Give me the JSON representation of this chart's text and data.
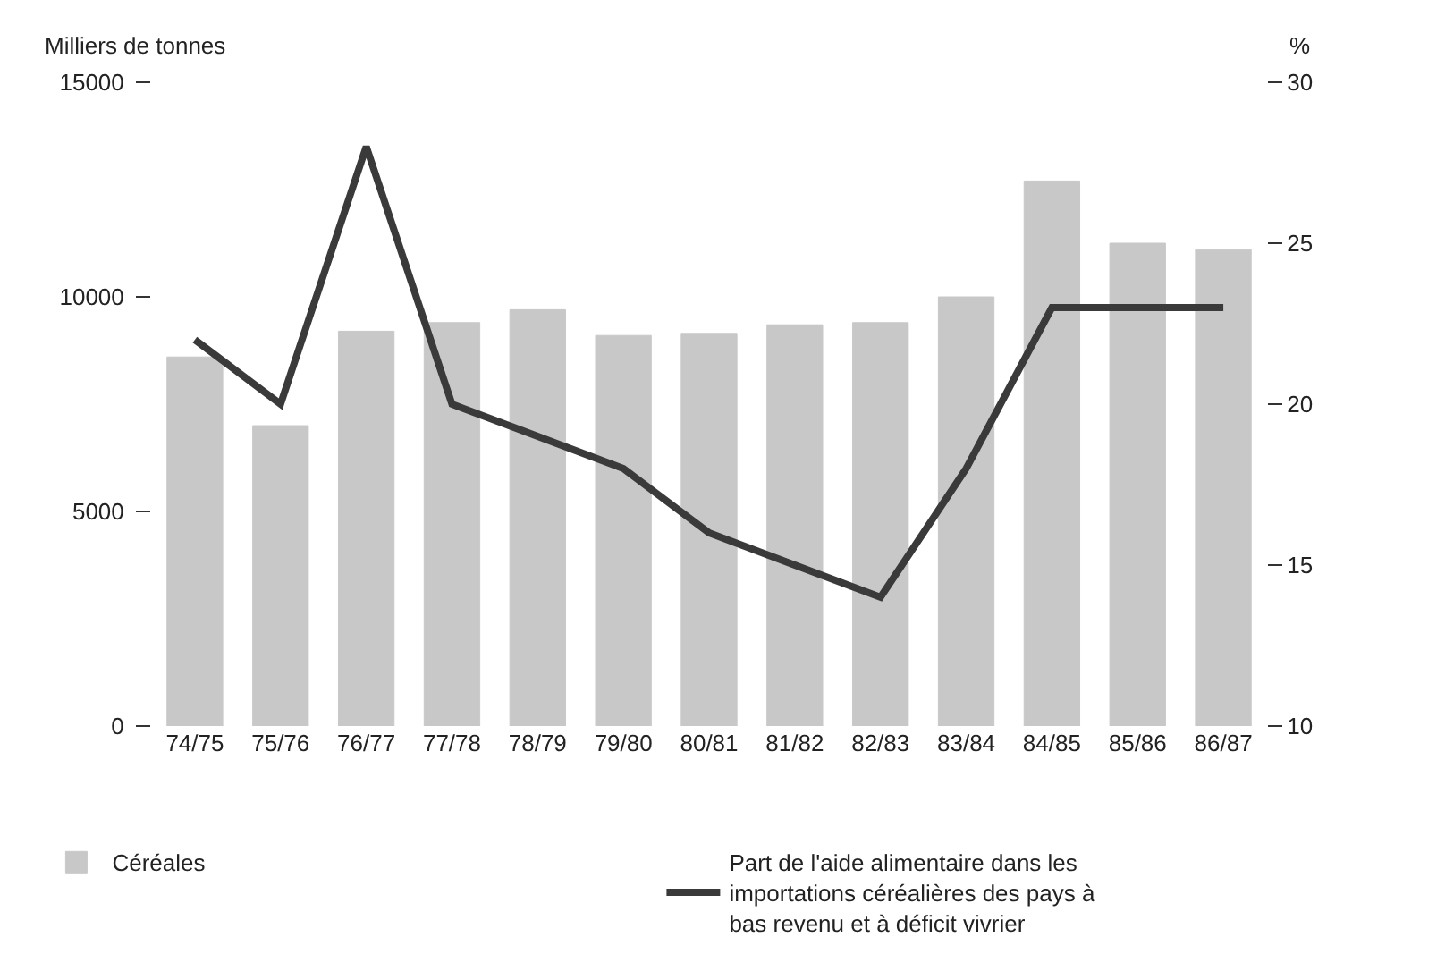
{
  "chart_data": {
    "type": "bar",
    "ylabel": "Milliers de tonnes",
    "y2label": "%",
    "categories": [
      "74/75",
      "75/76",
      "76/77",
      "77/78",
      "78/79",
      "79/80",
      "80/81",
      "81/82",
      "82/83",
      "83/84",
      "84/85",
      "85/86",
      "86/87"
    ],
    "series": [
      {
        "name": "Céréales",
        "color": "#c8c8c8",
        "values": [
          8600,
          7000,
          9200,
          9400,
          9700,
          9100,
          9150,
          9350,
          9400,
          10000,
          12700,
          11250,
          11100
        ]
      },
      {
        "name": "Part de l'aide alimentaire dans les importations céréalières des pays à bas revenu et à déficit vivrier",
        "type": "line",
        "axis": "y2",
        "color": "#3a3a3a",
        "values": [
          22,
          20,
          28,
          20,
          19,
          18,
          16,
          15,
          14,
          18,
          23,
          23,
          23
        ]
      }
    ],
    "ylim": [
      0,
      15000
    ],
    "yticks": [
      0,
      5000,
      10000,
      15000
    ],
    "y2lim": [
      10,
      30
    ],
    "y2ticks": [
      10,
      15,
      20,
      25,
      30
    ],
    "grid": false,
    "legend": "bottom",
    "marker": "none",
    "line_style": "solid"
  }
}
